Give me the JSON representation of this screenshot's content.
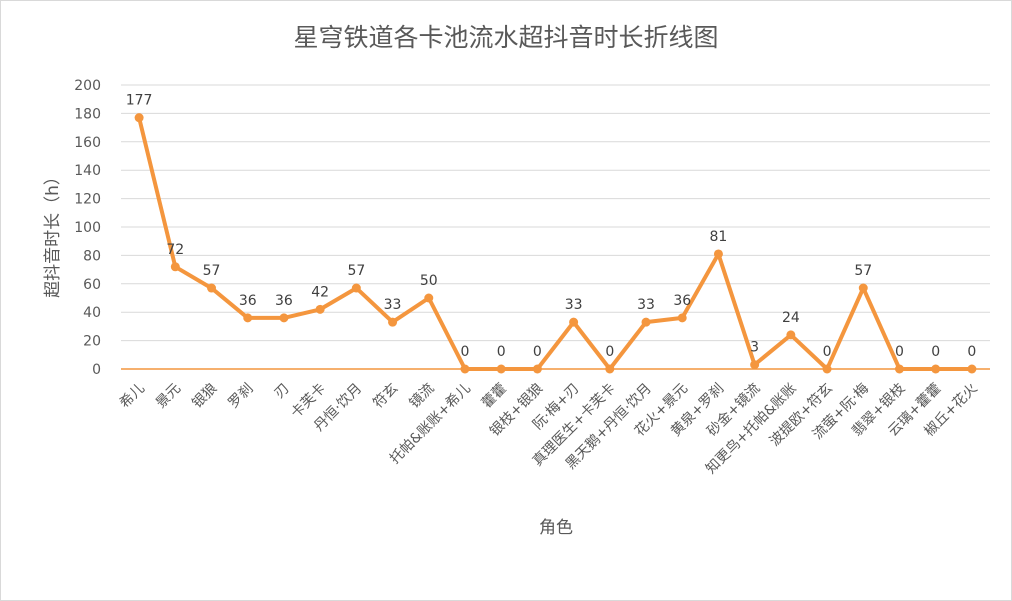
{
  "chart_data": {
    "type": "line",
    "title": "星穹铁道各卡池流水超抖音时长折线图",
    "xlabel": "角色",
    "ylabel": "超抖音时长（h）",
    "ylim": [
      0,
      200
    ],
    "y_ticks": [
      0,
      20,
      40,
      60,
      80,
      100,
      120,
      140,
      160,
      180,
      200
    ],
    "grid": true,
    "legend": "none",
    "color": "#F4963E",
    "categories": [
      "希儿",
      "景元",
      "银狼",
      "罗刹",
      "刃",
      "卡芙卡",
      "丹恒·饮月",
      "符玄",
      "镜流",
      "托帕&账账+希儿",
      "藿藿",
      "银枝+银狼",
      "阮·梅+刃",
      "真理医生+卡芙卡",
      "黑天鹅+丹恒·饮月",
      "花火+景元",
      "黄泉+罗刹",
      "砂金+镜流",
      "知更鸟+托帕&账账",
      "波提欧+符玄",
      "流萤+阮·梅",
      "翡翠+银枝",
      "云璃+藿藿",
      "椒丘+花火"
    ],
    "values": [
      177,
      72,
      57,
      36,
      36,
      42,
      57,
      33,
      50,
      0,
      0,
      0,
      33,
      0,
      33,
      36,
      81,
      3,
      24,
      0,
      57,
      0,
      0,
      0
    ]
  }
}
